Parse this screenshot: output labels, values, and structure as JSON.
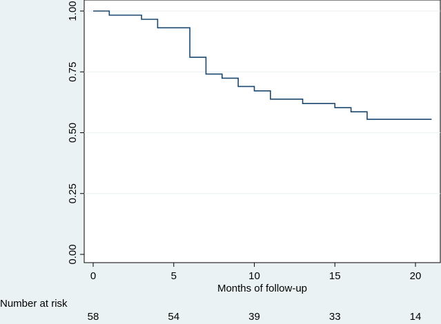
{
  "chart_data": {
    "type": "line",
    "step": true,
    "xlabel": "Months of follow-up",
    "ylabel": "",
    "xlim": [
      -0.5,
      21.5
    ],
    "ylim": [
      -0.02,
      1.0
    ],
    "xticks": [
      0,
      5,
      10,
      15,
      20
    ],
    "yticks": [
      0.0,
      0.25,
      0.5,
      0.75,
      1.0
    ],
    "ytick_labels": [
      "0.00",
      "0.25",
      "0.50",
      "0.75",
      "1.00"
    ],
    "grid": true,
    "series": [
      {
        "x": [
          0,
          1,
          3,
          4,
          6,
          7,
          8,
          9,
          10,
          11,
          13,
          15,
          16,
          17,
          21
        ],
        "y": [
          1.0,
          0.983,
          0.966,
          0.931,
          0.81,
          0.741,
          0.724,
          0.69,
          0.672,
          0.638,
          0.62,
          0.603,
          0.586,
          0.555,
          0.555
        ]
      }
    ],
    "risk_table": {
      "title": "Number at risk",
      "x": [
        0,
        5,
        10,
        15,
        20
      ],
      "counts": [
        "58",
        "54",
        "39",
        "33",
        "14"
      ]
    }
  },
  "colors": {
    "background": "#eaf2f3",
    "plot_background": "#ffffff",
    "line": "#1a476f",
    "grid": "#eaf2f3"
  }
}
